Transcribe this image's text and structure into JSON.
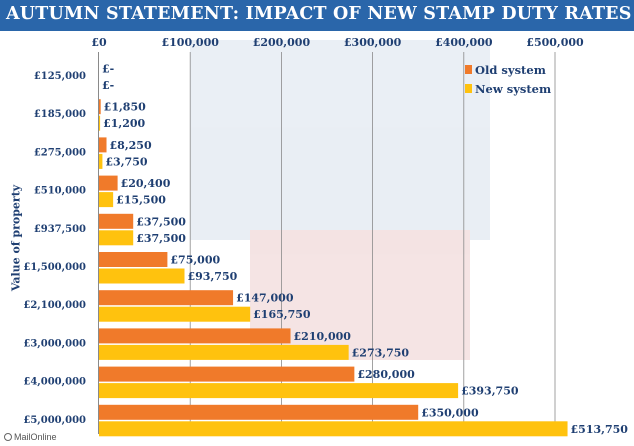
{
  "chart_data": {
    "type": "bar",
    "orientation": "horizontal",
    "title": "AUTUMN STATEMENT: IMPACT OF NEW STAMP DUTY RATES",
    "ylabel": "Value of property",
    "xlabel": "",
    "xlim": [
      0,
      550000
    ],
    "x_ticks": [
      "£0",
      "£100,000",
      "£200,000",
      "£300,000",
      "£400,000",
      "£500,000"
    ],
    "x_tick_values": [
      0,
      100000,
      200000,
      300000,
      400000,
      500000
    ],
    "categories": [
      "£125,000",
      "£185,000",
      "£275,000",
      "£510,000",
      "£937,500",
      "£1,500,000",
      "£2,100,000",
      "£3,000,000",
      "£4,000,000",
      "£5,000,000"
    ],
    "series": [
      {
        "name": "Old system",
        "color": "#f07a2a",
        "values": [
          0,
          1850,
          8250,
          20400,
          37500,
          75000,
          147000,
          210000,
          280000,
          350000
        ],
        "labels": [
          "£-",
          "£1,850",
          "£8,250",
          "£20,400",
          "£37,500",
          "£75,000",
          "£147,000",
          "£210,000",
          "£280,000",
          "£350,000"
        ]
      },
      {
        "name": "New system",
        "color": "#ffc20e",
        "values": [
          0,
          1200,
          3750,
          15500,
          37500,
          93750,
          165750,
          273750,
          393750,
          513750
        ],
        "labels": [
          "£-",
          "£1,200",
          "£3,750",
          "£15,500",
          "£37,500",
          "£93,750",
          "£165,750",
          "£273,750",
          "£393,750",
          "£513,750"
        ]
      }
    ],
    "legend_position": "top-right",
    "grid": true
  },
  "credit": "MailOnline",
  "colors": {
    "title_bg": "#2a66aa",
    "text": "#1f3f72",
    "grid": "#8a8a8a"
  }
}
